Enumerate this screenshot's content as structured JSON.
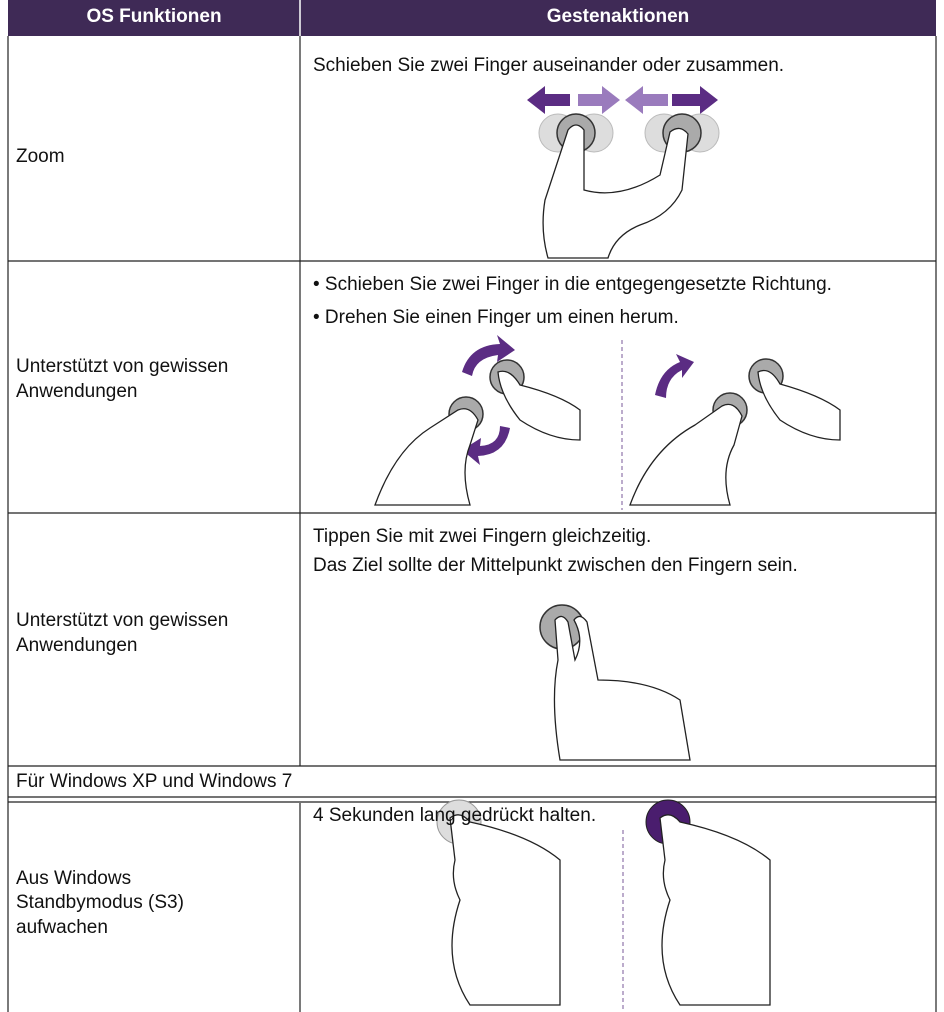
{
  "header": {
    "columns": [
      "OS Funktionen",
      "Gestenaktionen"
    ]
  },
  "rows": [
    {
      "function": [
        "Zoom"
      ],
      "description": [
        "Schieben Sie zwei Finger auseinander oder zusammen."
      ]
    },
    {
      "function": [
        "Unterstützt von gewissen",
        "Anwendungen"
      ],
      "description": [
        "• Schieben Sie zwei Finger in die entgegengesetzte Richtung.",
        "• Drehen Sie einen Finger um einen herum."
      ]
    },
    {
      "function": [
        "Unterstützt von gewissen",
        "Anwendungen"
      ],
      "description": [
        "Tippen Sie mit zwei Fingern gleichzeitig.",
        "Das Ziel sollte der Mittelpunkt zwischen den Fingern sein."
      ]
    }
  ],
  "section": "Für Windows XP und Windows 7",
  "section_rows": [
    {
      "function": [
        "Aus Windows",
        "Standbymodus (S3)",
        "aufwachen"
      ],
      "description": [
        "4 Sekunden lang gedrückt halten."
      ]
    }
  ]
}
